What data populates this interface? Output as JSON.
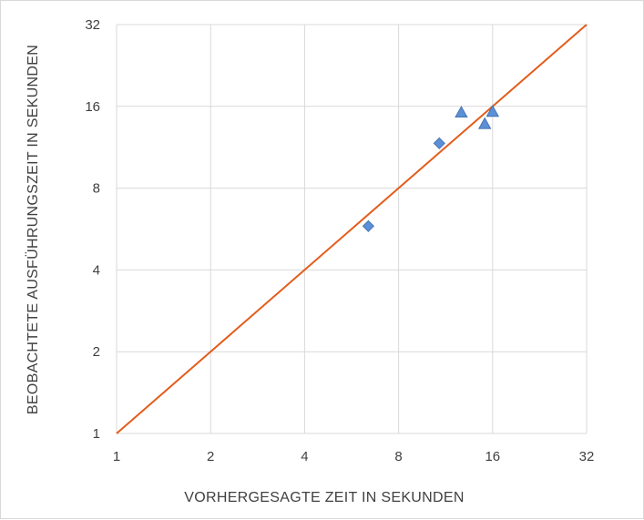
{
  "chart_data": {
    "type": "scatter",
    "x_scale": "log2",
    "y_scale": "log2",
    "xlim": [
      1,
      32
    ],
    "ylim": [
      1,
      32
    ],
    "x_ticks": [
      1,
      2,
      4,
      8,
      16,
      32
    ],
    "y_ticks": [
      1,
      2,
      4,
      8,
      16,
      32
    ],
    "xlabel": "VORHERGESAGTE  ZEIT  IN  SEKUNDEN",
    "ylabel": "BEOBACHTETE  AUSFÜHRUNGSZEIT  IN  SEKUNDEN",
    "grid": true,
    "series": [
      {
        "marker": "diamond",
        "color": "#5b8fd6",
        "points": [
          {
            "x": 6.4,
            "y": 5.8
          },
          {
            "x": 10.8,
            "y": 11.7
          }
        ]
      },
      {
        "marker": "triangle",
        "color": "#5b8fd6",
        "points": [
          {
            "x": 12.7,
            "y": 15.2
          },
          {
            "x": 15.1,
            "y": 13.8
          },
          {
            "x": 16.0,
            "y": 15.3
          }
        ]
      },
      {
        "marker": "line",
        "color": "#e35c1b",
        "points": [
          {
            "x": 1,
            "y": 1
          },
          {
            "x": 32,
            "y": 32
          }
        ]
      }
    ]
  }
}
